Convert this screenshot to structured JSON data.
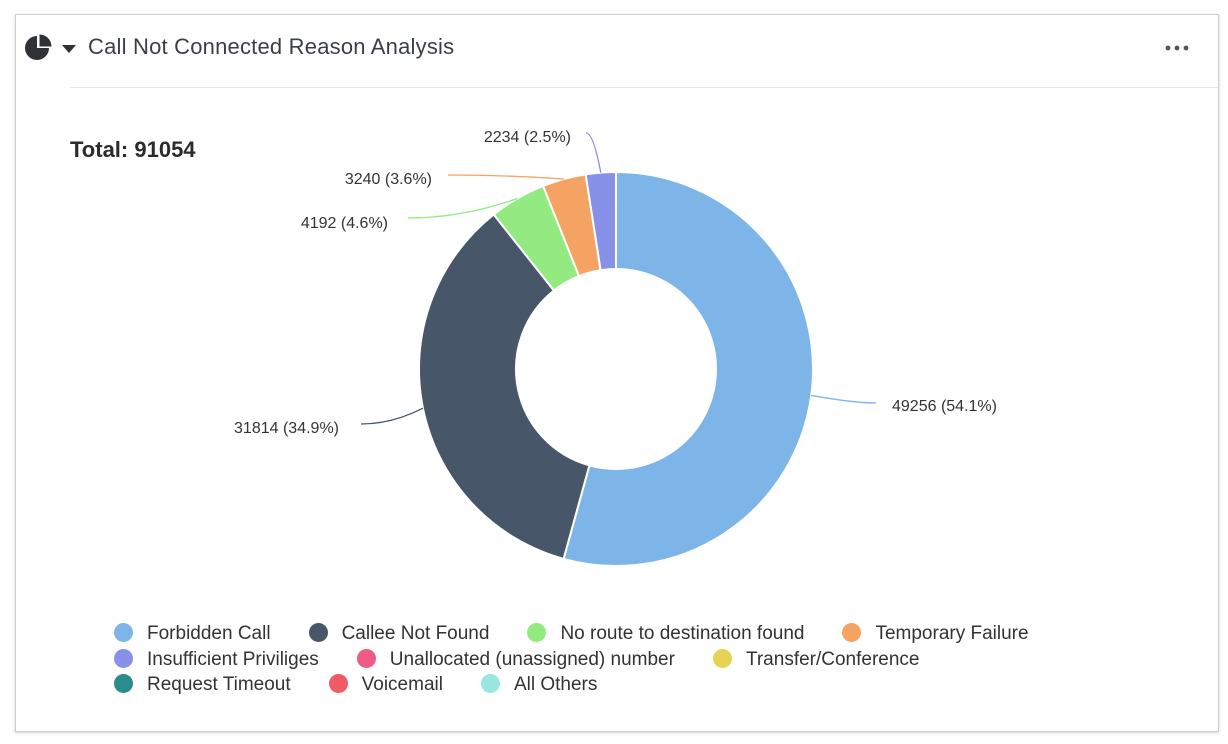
{
  "widget": {
    "title": "Call Not Connected Reason Analysis",
    "total_label": "Total: 91054",
    "icons": {
      "chart_type": "pie-chart-icon",
      "dropdown": "caret-down-icon",
      "menu": "more-options-icon"
    }
  },
  "chart_data": {
    "type": "pie",
    "style": "donut",
    "total": 91054,
    "slices": [
      {
        "name": "Forbidden Call",
        "value": 49256,
        "percent": 54.1,
        "label": "49256 (54.1%)",
        "color": "#7eb5e9"
      },
      {
        "name": "Callee Not Found",
        "value": 31814,
        "percent": 34.9,
        "label": "31814 (34.9%)",
        "color": "#475669"
      },
      {
        "name": "No route to destination found",
        "value": 4192,
        "percent": 4.6,
        "label": "4192 (4.6%)",
        "color": "#92ea80"
      },
      {
        "name": "Temporary Failure",
        "value": 3240,
        "percent": 3.6,
        "label": "3240 (3.6%)",
        "color": "#f4a362"
      },
      {
        "name": "Insufficient Priviliges",
        "value": 2234,
        "percent": 2.5,
        "label": "2234 (2.5%)",
        "color": "#8891e8"
      }
    ],
    "legend": [
      [
        {
          "name": "Forbidden Call",
          "color": "#7eb5e9"
        },
        {
          "name": "Callee Not Found",
          "color": "#475669"
        },
        {
          "name": "No route to destination found",
          "color": "#92ea80"
        },
        {
          "name": "Temporary Failure",
          "color": "#f4a362"
        }
      ],
      [
        {
          "name": "Insufficient Priviliges",
          "color": "#8891e8"
        },
        {
          "name": "Unallocated (unassigned) number",
          "color": "#ee5c85"
        },
        {
          "name": "Transfer/Conference",
          "color": "#e6d255"
        }
      ],
      [
        {
          "name": "Request Timeout",
          "color": "#2a8d8a"
        },
        {
          "name": "Voicemail",
          "color": "#ef5b64"
        },
        {
          "name": "All Others",
          "color": "#97e6df"
        }
      ]
    ],
    "legend_position": "bottom"
  }
}
